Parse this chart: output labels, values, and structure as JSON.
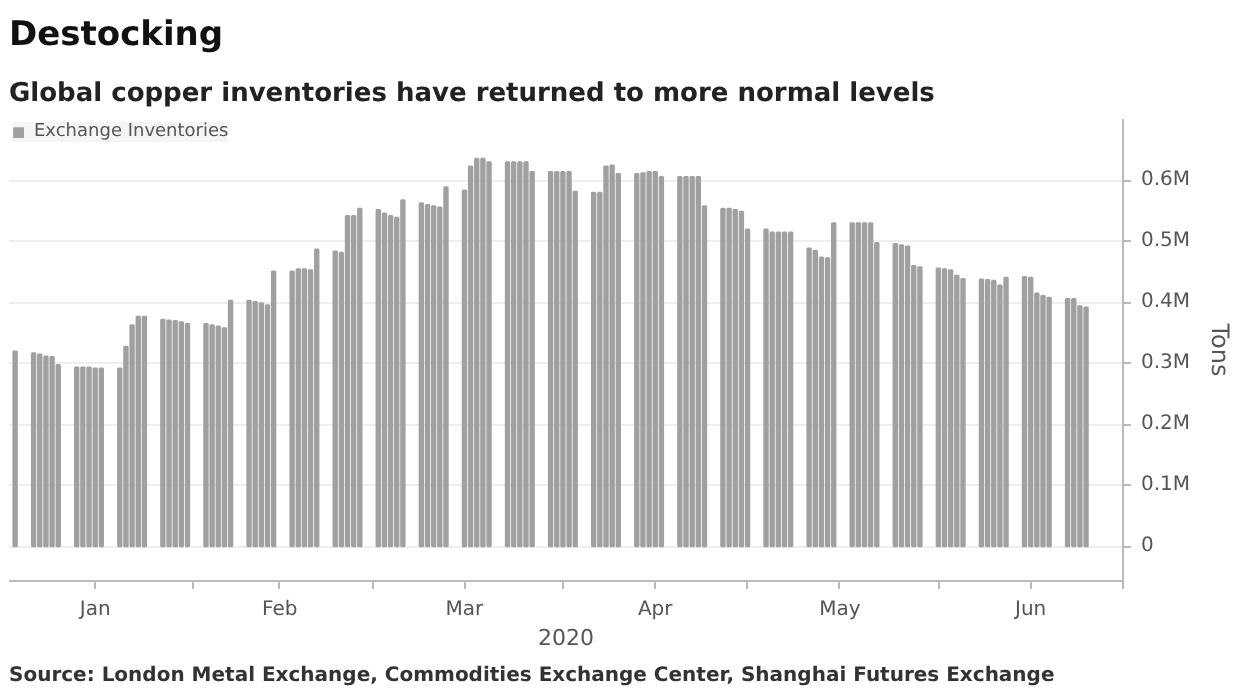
{
  "chart_data": {
    "type": "bar",
    "title": "Destocking",
    "subtitle": "Global copper inventories have returned to more normal levels",
    "xlabel": "2020",
    "ylabel": "Tons",
    "annotations": [
      "Source: London Metal Exchange, Commodities Exchange Center, Shanghai Futures Exchange"
    ],
    "series": [
      {
        "name": "Exchange Inventories",
        "color": "#a0a0a0",
        "x": [
          "2020-01-03",
          "2020-01-06",
          "2020-01-07",
          "2020-01-08",
          "2020-01-09",
          "2020-01-10",
          "2020-01-13",
          "2020-01-14",
          "2020-01-15",
          "2020-01-16",
          "2020-01-17",
          "2020-01-20",
          "2020-01-21",
          "2020-01-22",
          "2020-01-23",
          "2020-01-24",
          "2020-01-27",
          "2020-01-28",
          "2020-01-29",
          "2020-01-30",
          "2020-01-31",
          "2020-02-03",
          "2020-02-04",
          "2020-02-05",
          "2020-02-06",
          "2020-02-07",
          "2020-02-10",
          "2020-02-11",
          "2020-02-12",
          "2020-02-13",
          "2020-02-14",
          "2020-02-17",
          "2020-02-18",
          "2020-02-19",
          "2020-02-20",
          "2020-02-21",
          "2020-02-24",
          "2020-02-25",
          "2020-02-26",
          "2020-02-27",
          "2020-02-28",
          "2020-03-02",
          "2020-03-03",
          "2020-03-04",
          "2020-03-05",
          "2020-03-06",
          "2020-03-09",
          "2020-03-10",
          "2020-03-11",
          "2020-03-12",
          "2020-03-13",
          "2020-03-16",
          "2020-03-17",
          "2020-03-18",
          "2020-03-19",
          "2020-03-20",
          "2020-03-23",
          "2020-03-24",
          "2020-03-25",
          "2020-03-26",
          "2020-03-27",
          "2020-03-30",
          "2020-03-31",
          "2020-04-01",
          "2020-04-02",
          "2020-04-03",
          "2020-04-06",
          "2020-04-07",
          "2020-04-08",
          "2020-04-09",
          "2020-04-10",
          "2020-04-13",
          "2020-04-14",
          "2020-04-15",
          "2020-04-16",
          "2020-04-17",
          "2020-04-20",
          "2020-04-21",
          "2020-04-22",
          "2020-04-23",
          "2020-04-24",
          "2020-04-27",
          "2020-04-28",
          "2020-04-29",
          "2020-04-30",
          "2020-05-01",
          "2020-05-04",
          "2020-05-05",
          "2020-05-06",
          "2020-05-07",
          "2020-05-08",
          "2020-05-11",
          "2020-05-12",
          "2020-05-13",
          "2020-05-14",
          "2020-05-15",
          "2020-05-18",
          "2020-05-19",
          "2020-05-20",
          "2020-05-21",
          "2020-05-22",
          "2020-05-25",
          "2020-05-26",
          "2020-05-27",
          "2020-05-28",
          "2020-05-29",
          "2020-06-01",
          "2020-06-02",
          "2020-06-03",
          "2020-06-04",
          "2020-06-05",
          "2020-06-08",
          "2020-06-09",
          "2020-06-10",
          "2020-06-11",
          "2020-06-12",
          "2020-06-15",
          "2020-06-16",
          "2020-06-17",
          "2020-06-18",
          "2020-06-19",
          "2020-06-22",
          "2020-06-23",
          "2020-06-24",
          "2020-06-25"
        ],
        "values": [
          319000,
          316000,
          314000,
          311000,
          310000,
          297000,
          293000,
          293000,
          293000,
          291000,
          291000,
          291000,
          327000,
          362000,
          376000,
          376000,
          371000,
          370000,
          369000,
          367000,
          364000,
          364000,
          362000,
          360000,
          357000,
          402000,
          402000,
          400000,
          398000,
          395000,
          450000,
          450000,
          454000,
          454000,
          452000,
          486000,
          483000,
          481000,
          541000,
          541000,
          553000,
          551000,
          545000,
          541000,
          538000,
          567000,
          562000,
          559000,
          557000,
          555000,
          588000,
          583000,
          622000,
          635000,
          635000,
          629000,
          629000,
          629000,
          629000,
          629000,
          613000,
          613000,
          613000,
          613000,
          613000,
          581000,
          579000,
          579000,
          622000,
          624000,
          610000,
          610000,
          611000,
          613000,
          613000,
          605000,
          605000,
          605000,
          605000,
          605000,
          557000,
          553000,
          553000,
          551000,
          548000,
          519000,
          519000,
          514000,
          514000,
          514000,
          514000,
          488000,
          484000,
          473000,
          472000,
          529000,
          529000,
          529000,
          529000,
          529000,
          497000,
          495000,
          493000,
          491000,
          459000,
          457000,
          455000,
          454000,
          452000,
          443000,
          438000,
          437000,
          436000,
          435000,
          427000,
          440000,
          441000,
          440000,
          414000,
          410000,
          407000,
          405000,
          405000,
          393000,
          391000
        ]
      }
    ],
    "xlim": [
      "2020-01-02",
      "2020-07-01"
    ],
    "xticks": [
      {
        "value": "2020-01-16",
        "label": "Jan"
      },
      {
        "value": "2020-02-01",
        "label": null
      },
      {
        "value": "2020-02-15",
        "label": "Feb"
      },
      {
        "value": "2020-03-01",
        "label": null
      },
      {
        "value": "2020-03-16",
        "label": "Mar"
      },
      {
        "value": "2020-04-01",
        "label": null
      },
      {
        "value": "2020-04-16",
        "label": "Apr"
      },
      {
        "value": "2020-05-01",
        "label": null
      },
      {
        "value": "2020-05-16",
        "label": "May"
      },
      {
        "value": "2020-06-01",
        "label": null
      },
      {
        "value": "2020-06-16",
        "label": "Jun"
      },
      {
        "value": "2020-07-01",
        "label": null
      }
    ],
    "ylim": [
      -57000,
      700000
    ],
    "yticks": [
      {
        "value": 0,
        "label": "0"
      },
      {
        "value": 100000,
        "label": "0.1M"
      },
      {
        "value": 200000,
        "label": "0.2M"
      },
      {
        "value": 300000,
        "label": "0.3M"
      },
      {
        "value": 400000,
        "label": "0.4M"
      },
      {
        "value": 500000,
        "label": "0.5M"
      },
      {
        "value": 600000,
        "label": "0.6M"
      }
    ],
    "grid": true,
    "legend": "top left"
  }
}
